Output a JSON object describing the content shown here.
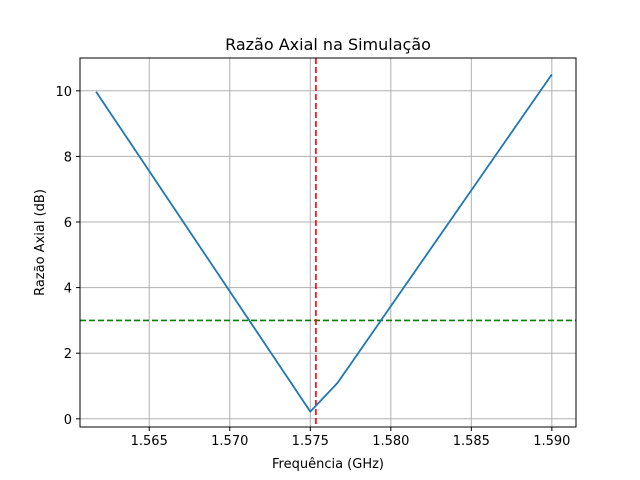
{
  "chart_data": {
    "type": "line",
    "title": "Razão Axial na Simulação",
    "xlabel": "Frequência (GHz)",
    "ylabel": "Razão Axial (dB)",
    "xlim": [
      1.5607,
      1.5915
    ],
    "ylim": [
      -0.25,
      11.0
    ],
    "xticks": [
      1.565,
      1.57,
      1.575,
      1.58,
      1.585,
      1.59
    ],
    "xtick_labels": [
      "1.565",
      "1.570",
      "1.575",
      "1.580",
      "1.585",
      "1.590"
    ],
    "yticks": [
      0,
      2,
      4,
      6,
      8,
      10
    ],
    "ytick_labels": [
      "0",
      "2",
      "4",
      "6",
      "8",
      "10"
    ],
    "grid": true,
    "series": [
      {
        "color": "#1f77b4",
        "style": "solid",
        "x": [
          1.5617,
          1.575,
          1.5767,
          1.59
        ],
        "y": [
          9.97,
          0.22,
          1.1,
          10.5
        ]
      }
    ],
    "reference_lines": [
      {
        "orientation": "horizontal",
        "value": 3.0,
        "color": "#008000",
        "style": "dashed"
      },
      {
        "orientation": "vertical",
        "value": 1.57535,
        "color": "#ff0000",
        "style": "dashed"
      }
    ]
  }
}
